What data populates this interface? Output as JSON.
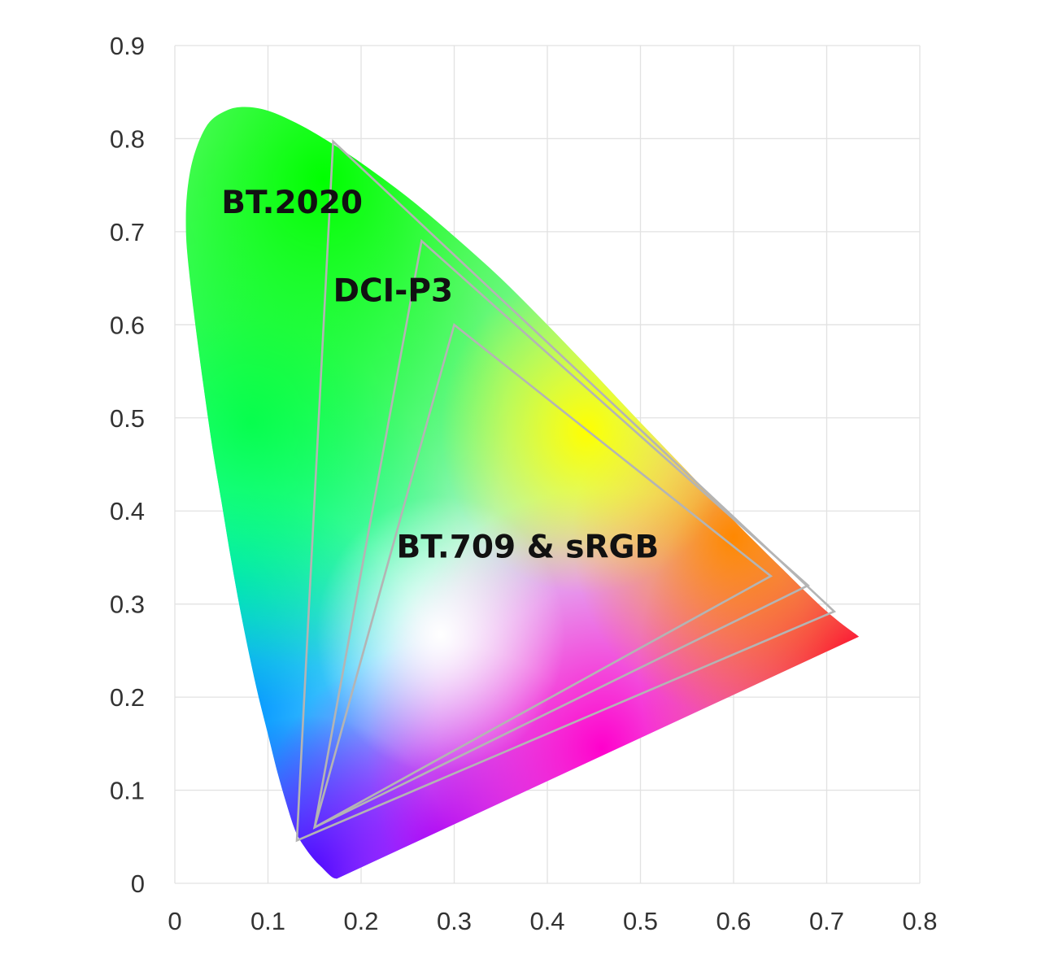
{
  "chart_data": {
    "type": "scatter",
    "title": "",
    "xlabel": "",
    "ylabel": "",
    "xlim": [
      0,
      0.8
    ],
    "ylim": [
      0,
      0.9
    ],
    "grid": true,
    "x_ticks": [
      "0",
      "0.1",
      "0.2",
      "0.3",
      "0.4",
      "0.5",
      "0.6",
      "0.7",
      "0.8"
    ],
    "y_ticks": [
      "0",
      "0.1",
      "0.2",
      "0.3",
      "0.4",
      "0.5",
      "0.6",
      "0.7",
      "0.8",
      "0.9"
    ],
    "spectral_locus": [
      [
        0.1741,
        0.005
      ],
      [
        0.17,
        0.006
      ],
      [
        0.165,
        0.01
      ],
      [
        0.158,
        0.017
      ],
      [
        0.15,
        0.025
      ],
      [
        0.14,
        0.038
      ],
      [
        0.13,
        0.055
      ],
      [
        0.12,
        0.085
      ],
      [
        0.11,
        0.12
      ],
      [
        0.1,
        0.16
      ],
      [
        0.09,
        0.2
      ],
      [
        0.08,
        0.245
      ],
      [
        0.07,
        0.295
      ],
      [
        0.06,
        0.35
      ],
      [
        0.05,
        0.41
      ],
      [
        0.04,
        0.47
      ],
      [
        0.03,
        0.54
      ],
      [
        0.022,
        0.6
      ],
      [
        0.015,
        0.66
      ],
      [
        0.012,
        0.7
      ],
      [
        0.013,
        0.74
      ],
      [
        0.02,
        0.78
      ],
      [
        0.035,
        0.815
      ],
      [
        0.055,
        0.83
      ],
      [
        0.075,
        0.834
      ],
      [
        0.1,
        0.83
      ],
      [
        0.13,
        0.817
      ],
      [
        0.16,
        0.8
      ],
      [
        0.2,
        0.774
      ],
      [
        0.25,
        0.737
      ],
      [
        0.3,
        0.695
      ],
      [
        0.35,
        0.65
      ],
      [
        0.4,
        0.6
      ],
      [
        0.45,
        0.548
      ],
      [
        0.5,
        0.495
      ],
      [
        0.55,
        0.443
      ],
      [
        0.6,
        0.39
      ],
      [
        0.65,
        0.34
      ],
      [
        0.7,
        0.292
      ],
      [
        0.7347,
        0.265
      ]
    ],
    "series": [
      {
        "name": "BT.2020",
        "primaries": [
          [
            0.708,
            0.292
          ],
          [
            0.17,
            0.797
          ],
          [
            0.131,
            0.046
          ]
        ]
      },
      {
        "name": "DCI-P3",
        "primaries": [
          [
            0.68,
            0.32
          ],
          [
            0.265,
            0.69
          ],
          [
            0.15,
            0.06
          ]
        ]
      },
      {
        "name": "BT.709 & sRGB",
        "primaries": [
          [
            0.64,
            0.33
          ],
          [
            0.3,
            0.6
          ],
          [
            0.15,
            0.06
          ]
        ]
      }
    ],
    "annotations": [
      {
        "text": "BT.2020",
        "x": 0.05,
        "y": 0.72
      },
      {
        "text": "DCI-P3",
        "x": 0.17,
        "y": 0.625
      },
      {
        "text": "BT.709 & sRGB",
        "x": 0.238,
        "y": 0.35
      }
    ]
  }
}
